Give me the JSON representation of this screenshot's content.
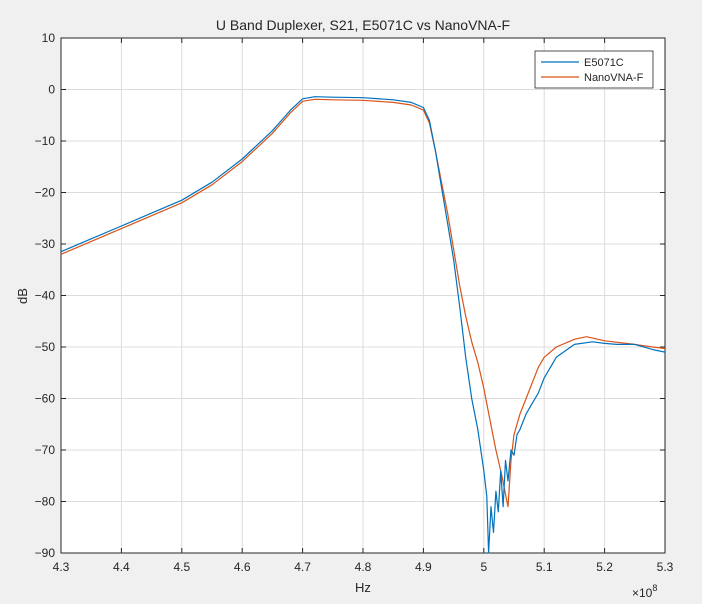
{
  "chart_data": {
    "type": "line",
    "title": "U Band Duplexer, S21, E5071C vs NanoVNA-F",
    "xlabel": "Hz",
    "ylabel": "dB",
    "x_exponent_label": "×10",
    "x_exponent_power": "8",
    "xlim": [
      4.3,
      5.3
    ],
    "ylim": [
      -90,
      10
    ],
    "x_ticks": [
      "4.3",
      "4.4",
      "4.5",
      "4.6",
      "4.7",
      "4.8",
      "4.9",
      "5",
      "5.1",
      "5.2",
      "5.3"
    ],
    "y_ticks": [
      "10",
      "0",
      "-10",
      "-20",
      "-30",
      "-40",
      "-50",
      "-60",
      "-70",
      "-80",
      "-90"
    ],
    "grid": true,
    "legend_position": "top-right",
    "series": [
      {
        "name": "E5071C",
        "color": "#0072BD",
        "x": [
          4.3,
          4.35,
          4.4,
          4.45,
          4.5,
          4.55,
          4.6,
          4.65,
          4.68,
          4.7,
          4.72,
          4.75,
          4.8,
          4.85,
          4.88,
          4.9,
          4.91,
          4.92,
          4.93,
          4.94,
          4.95,
          4.96,
          4.97,
          4.98,
          4.99,
          4.995,
          5.0,
          5.005,
          5.008,
          5.012,
          5.016,
          5.02,
          5.024,
          5.028,
          5.032,
          5.036,
          5.04,
          5.045,
          5.05,
          5.055,
          5.06,
          5.07,
          5.08,
          5.09,
          5.1,
          5.12,
          5.15,
          5.18,
          5.2,
          5.22,
          5.25,
          5.28,
          5.3
        ],
        "y": [
          -31.5,
          -29,
          -26.5,
          -24,
          -21.5,
          -18,
          -13.5,
          -8,
          -4,
          -1.8,
          -1.4,
          -1.5,
          -1.6,
          -2,
          -2.5,
          -3.5,
          -6,
          -12,
          -19,
          -26,
          -33,
          -42,
          -52,
          -60,
          -66,
          -70,
          -74,
          -79,
          -90,
          -81,
          -86,
          -78,
          -82,
          -74,
          -81,
          -72,
          -76,
          -70,
          -71,
          -67,
          -66,
          -63,
          -61,
          -59,
          -56,
          -52,
          -49.5,
          -49,
          -49.3,
          -49.5,
          -49.5,
          -50.5,
          -51
        ]
      },
      {
        "name": "NanoVNA-F",
        "color": "#D95319",
        "x": [
          4.3,
          4.35,
          4.4,
          4.45,
          4.5,
          4.55,
          4.6,
          4.65,
          4.68,
          4.7,
          4.72,
          4.75,
          4.8,
          4.85,
          4.88,
          4.9,
          4.91,
          4.92,
          4.93,
          4.94,
          4.95,
          4.96,
          4.97,
          4.98,
          4.99,
          5.0,
          5.01,
          5.02,
          5.03,
          5.035,
          5.04,
          5.045,
          5.05,
          5.06,
          5.07,
          5.08,
          5.09,
          5.1,
          5.12,
          5.15,
          5.17,
          5.2,
          5.25,
          5.28,
          5.3
        ],
        "y": [
          -32,
          -29.5,
          -27,
          -24.5,
          -22,
          -18.5,
          -14,
          -8.5,
          -4.5,
          -2.3,
          -1.9,
          -2,
          -2.1,
          -2.5,
          -3,
          -4,
          -6.5,
          -12,
          -18,
          -24,
          -31,
          -38,
          -44,
          -49,
          -53,
          -58,
          -64,
          -70,
          -75,
          -78,
          -81,
          -72,
          -67,
          -63,
          -60,
          -57,
          -54,
          -52,
          -50,
          -48.5,
          -48,
          -48.8,
          -49.5,
          -50,
          -50.3
        ]
      }
    ]
  }
}
